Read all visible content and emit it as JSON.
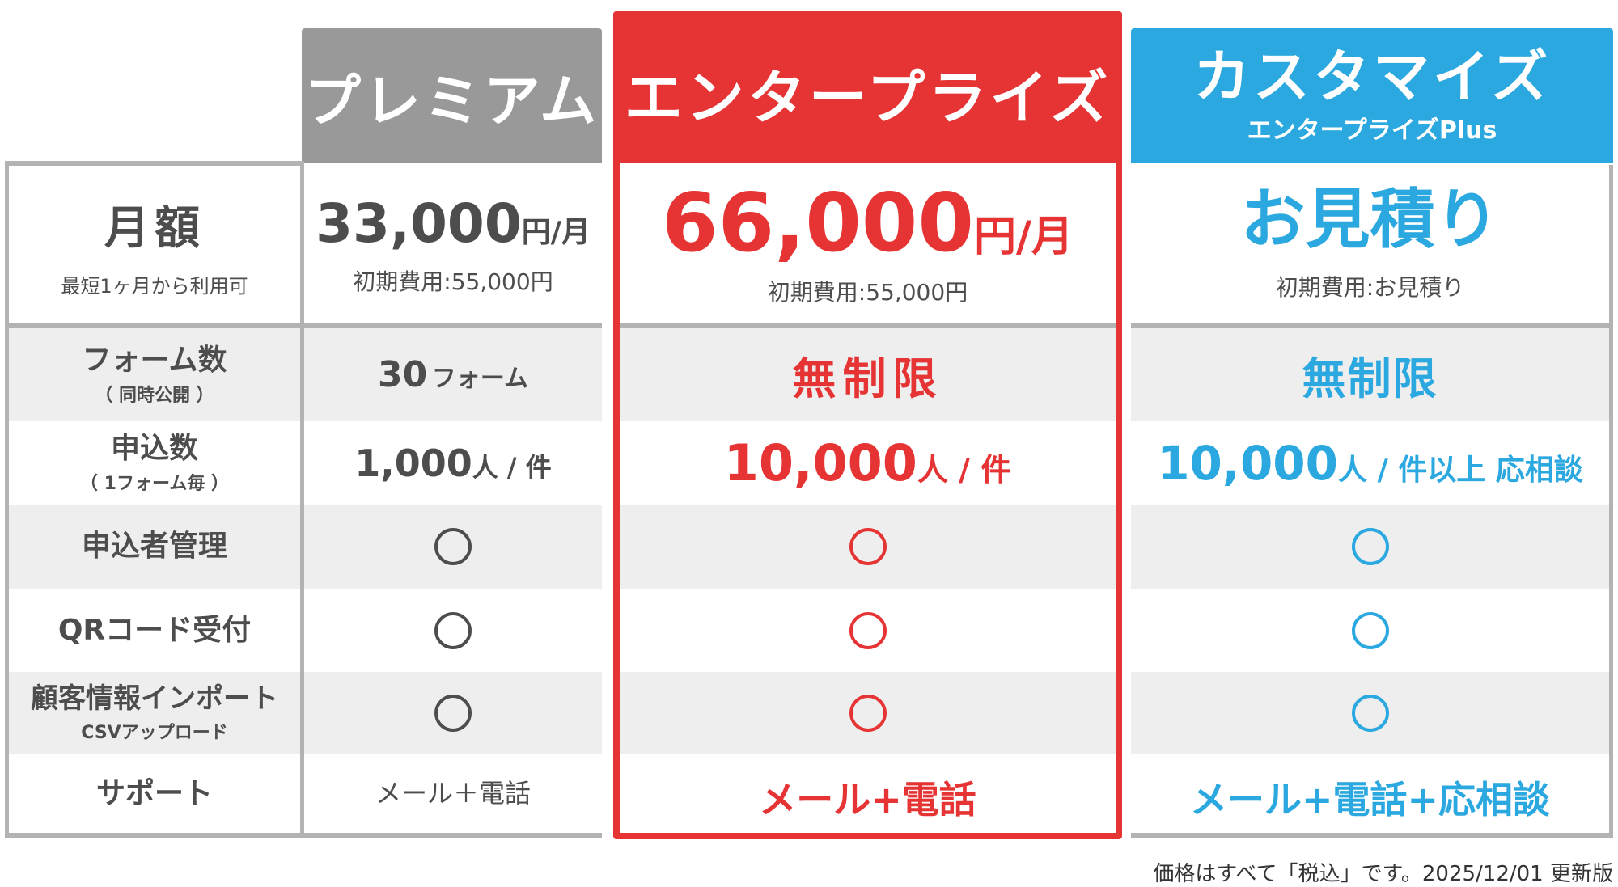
{
  "colors": {
    "premium": "#999999",
    "enterprise": "#e63434",
    "custom": "#2aa8df",
    "text": "#4d4d4d",
    "row_alt": "#eeeeee",
    "border": "#b3b3b3"
  },
  "plans": [
    {
      "name": "プレミアム",
      "price": "33,000",
      "price_unit": "円/月",
      "initial_fee": "初期費用:55,000円"
    },
    {
      "name": "エンタープライズ",
      "price": "66,000",
      "price_unit": "円/月",
      "initial_fee": "初期費用:55,000円"
    },
    {
      "name": "カスタマイズ",
      "subtitle": "エンタープライズPlus",
      "price": "お見積り",
      "initial_fee": "初期費用:お見積り"
    }
  ],
  "rows": [
    {
      "label": "月額",
      "sublabel": "最短1ヶ月から利用可"
    },
    {
      "label": "フォーム数",
      "sublabel": "（ 同時公開 ）",
      "values": [
        {
          "num": "30",
          "unit": "フォーム"
        },
        {
          "text": "無制限"
        },
        {
          "text": "無制限"
        }
      ]
    },
    {
      "label": "申込数",
      "sublabel": "（ 1フォーム毎 ）",
      "values": [
        {
          "num": "1,000",
          "unit": "人 / 件"
        },
        {
          "num": "10,000",
          "unit": "人 / 件"
        },
        {
          "num": "10,000",
          "unit": "人 / 件以上 応相談"
        }
      ]
    },
    {
      "label": "申込者管理",
      "values": [
        "available",
        "available",
        "available"
      ]
    },
    {
      "label": "QRコード受付",
      "values": [
        "available",
        "available",
        "available"
      ]
    },
    {
      "label": "顧客情報インポート",
      "sublabel": "CSVアップロード",
      "values": [
        "available",
        "available",
        "available"
      ]
    },
    {
      "label": "サポート",
      "values": [
        {
          "text": "メール＋電話"
        },
        {
          "text": "メール+電話"
        },
        {
          "text": "メール+電話+応相談"
        }
      ]
    }
  ],
  "footer_note": "価格はすべて「税込」です。2025/12/01 更新版"
}
